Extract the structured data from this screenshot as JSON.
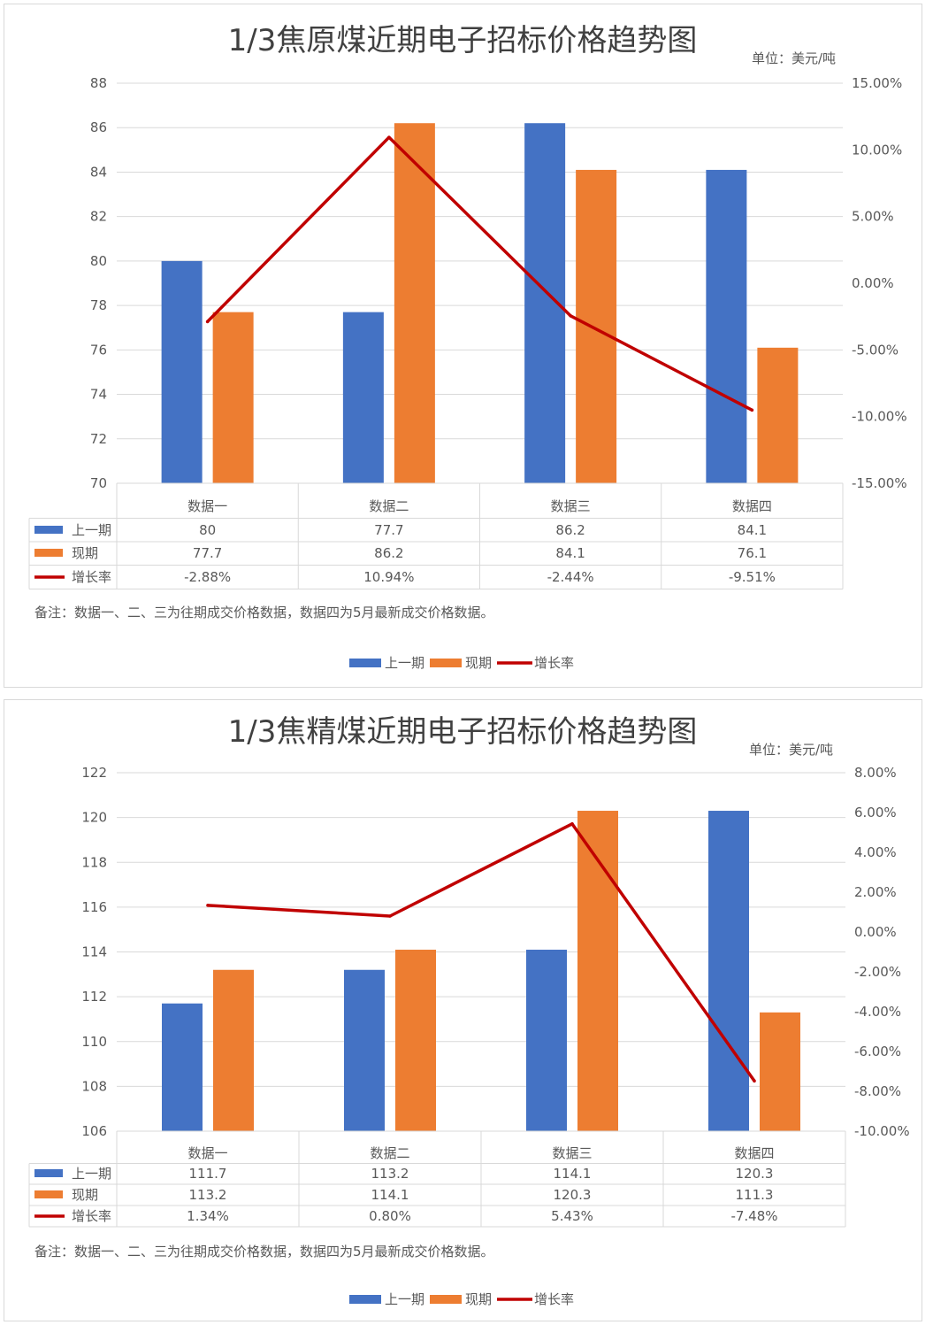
{
  "chart_data": [
    {
      "type": "bar",
      "title": "1/3焦原煤近期电子招标价格趋势图",
      "unit_label": "单位：美元/吨",
      "categories": [
        "数据一",
        "数据二",
        "数据三",
        "数据四"
      ],
      "series": [
        {
          "name": "上一期",
          "type": "bar",
          "axis": "left",
          "color": "#4472c4",
          "values": [
            80,
            77.7,
            86.2,
            84.1
          ],
          "labels": [
            "80",
            "77.7",
            "86.2",
            "84.1"
          ]
        },
        {
          "name": "现期",
          "type": "bar",
          "axis": "left",
          "color": "#ed7d31",
          "values": [
            77.7,
            86.2,
            84.1,
            76.1
          ],
          "labels": [
            "77.7",
            "86.2",
            "84.1",
            "76.1"
          ]
        },
        {
          "name": "增长率",
          "type": "line",
          "axis": "right",
          "color": "#c00000",
          "values": [
            -2.88,
            10.94,
            -2.44,
            -9.51
          ],
          "labels": [
            "-2.88%",
            "10.94%",
            "-2.44%",
            "-9.51%"
          ]
        }
      ],
      "y_left": {
        "min": 70,
        "max": 88,
        "ticks": [
          "70",
          "72",
          "74",
          "76",
          "78",
          "80",
          "82",
          "84",
          "86",
          "88"
        ]
      },
      "y_right": {
        "min": -15,
        "max": 15,
        "ticks": [
          "-15.00%",
          "-10.00%",
          "-5.00%",
          "0.00%",
          "5.00%",
          "10.00%",
          "15.00%"
        ]
      },
      "gridlines": true,
      "data_table": true,
      "legend": "bottom",
      "note": "备注：数据一、二、三为往期成交价格数据，数据四为5月最新成交价格数据。"
    },
    {
      "type": "bar",
      "title": "1/3焦精煤近期电子招标价格趋势图",
      "unit_label": "单位：美元/吨",
      "categories": [
        "数据一",
        "数据二",
        "数据三",
        "数据四"
      ],
      "series": [
        {
          "name": "上一期",
          "type": "bar",
          "axis": "left",
          "color": "#4472c4",
          "values": [
            111.7,
            113.2,
            114.1,
            120.3
          ],
          "labels": [
            "111.7",
            "113.2",
            "114.1",
            "120.3"
          ]
        },
        {
          "name": "现期",
          "type": "bar",
          "axis": "left",
          "color": "#ed7d31",
          "values": [
            113.2,
            114.1,
            120.3,
            111.3
          ],
          "labels": [
            "113.2",
            "114.1",
            "120.3",
            "111.3"
          ]
        },
        {
          "name": "增长率",
          "type": "line",
          "axis": "right",
          "color": "#c00000",
          "values": [
            1.34,
            0.8,
            5.43,
            -7.48
          ],
          "labels": [
            "1.34%",
            "0.80%",
            "5.43%",
            "-7.48%"
          ]
        }
      ],
      "y_left": {
        "min": 106,
        "max": 122,
        "ticks": [
          "106",
          "108",
          "110",
          "112",
          "114",
          "116",
          "118",
          "120",
          "122"
        ]
      },
      "y_right": {
        "min": -10,
        "max": 8,
        "ticks": [
          "-10.00%",
          "-8.00%",
          "-6.00%",
          "-4.00%",
          "-2.00%",
          "0.00%",
          "2.00%",
          "4.00%",
          "6.00%",
          "8.00%"
        ]
      },
      "gridlines": true,
      "data_table": true,
      "legend": "bottom",
      "note": "备注：数据一、二、三为往期成交价格数据，数据四为5月最新成交价格数据。"
    }
  ]
}
